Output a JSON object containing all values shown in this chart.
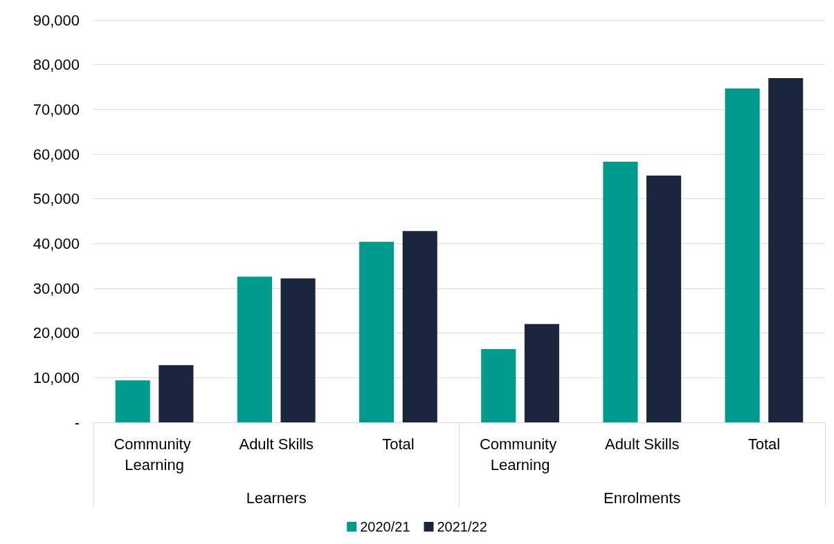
{
  "chart_data": {
    "type": "bar",
    "categories": [
      "Community Learning",
      "Adult Skills",
      "Total",
      "Community Learning",
      "Adult Skills",
      "Total"
    ],
    "annotations": [
      "Learners",
      "Enrolments"
    ],
    "series": [
      {
        "name": "2020/21",
        "color": "#009b8f",
        "values": [
          9400,
          32600,
          40400,
          16400,
          58300,
          74700
        ]
      },
      {
        "name": "2021/22",
        "color": "#19243d",
        "values": [
          12800,
          32200,
          42800,
          22000,
          55200,
          77000
        ]
      }
    ],
    "ylim": [
      0,
      90000
    ],
    "yticks": [
      {
        "value": 0,
        "label": "-"
      },
      {
        "value": 10000,
        "label": "10,000"
      },
      {
        "value": 20000,
        "label": "20,000"
      },
      {
        "value": 30000,
        "label": "30,000"
      },
      {
        "value": 40000,
        "label": "40,000"
      },
      {
        "value": 50000,
        "label": "50,000"
      },
      {
        "value": 60000,
        "label": "60,000"
      },
      {
        "value": 70000,
        "label": "70,000"
      },
      {
        "value": 80000,
        "label": "80,000"
      },
      {
        "value": 90000,
        "label": "90,000"
      }
    ],
    "grid": "y",
    "legend": "bottom"
  }
}
